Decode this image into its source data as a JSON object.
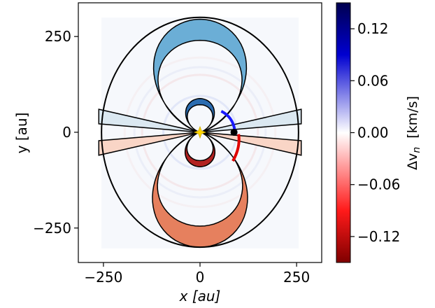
{
  "chart_data": {
    "type": "heatmap",
    "title": "",
    "xlabel": "x [au]",
    "ylabel": "y [au]",
    "xlim": [
      -315,
      315
    ],
    "ylim": [
      -340,
      338
    ],
    "xticks": [
      -250,
      0,
      250
    ],
    "yticks": [
      -250,
      0,
      250
    ],
    "xtick_labels": [
      "−250",
      "0",
      "250"
    ],
    "ytick_labels": [
      "−250",
      "0",
      "250"
    ],
    "grid": false,
    "colorbar": {
      "label": "Δv",
      "label_subscript": "n",
      "unit": "[km/s]",
      "range": [
        -0.15,
        0.15
      ],
      "ticks": [
        0.12,
        0.06,
        0.0,
        -0.06,
        -0.12
      ],
      "tick_labels": [
        "0.12",
        "0.06",
        "0.00",
        "−0.06",
        "−0.12"
      ],
      "colormap": "seismic_r",
      "color_low": "#7f0000",
      "color_mid": "#ffffff",
      "color_high": "#00004f"
    },
    "outer_ellipse": {
      "cx": 0,
      "cy": 0,
      "rx": 255,
      "ry": 300
    },
    "star": {
      "x": 0,
      "y": 0,
      "color": "#ffd700"
    },
    "planet": {
      "x": 88,
      "y": 0
    },
    "lobe_colors": {
      "upper_outer": "#6baed6",
      "upper_inner": "#2b6cb0",
      "lower_outer": "#e6805e",
      "lower_inner": "#b22222",
      "upper_wedge": "#dbe8f1",
      "lower_wedge": "#f9d5c6"
    }
  }
}
